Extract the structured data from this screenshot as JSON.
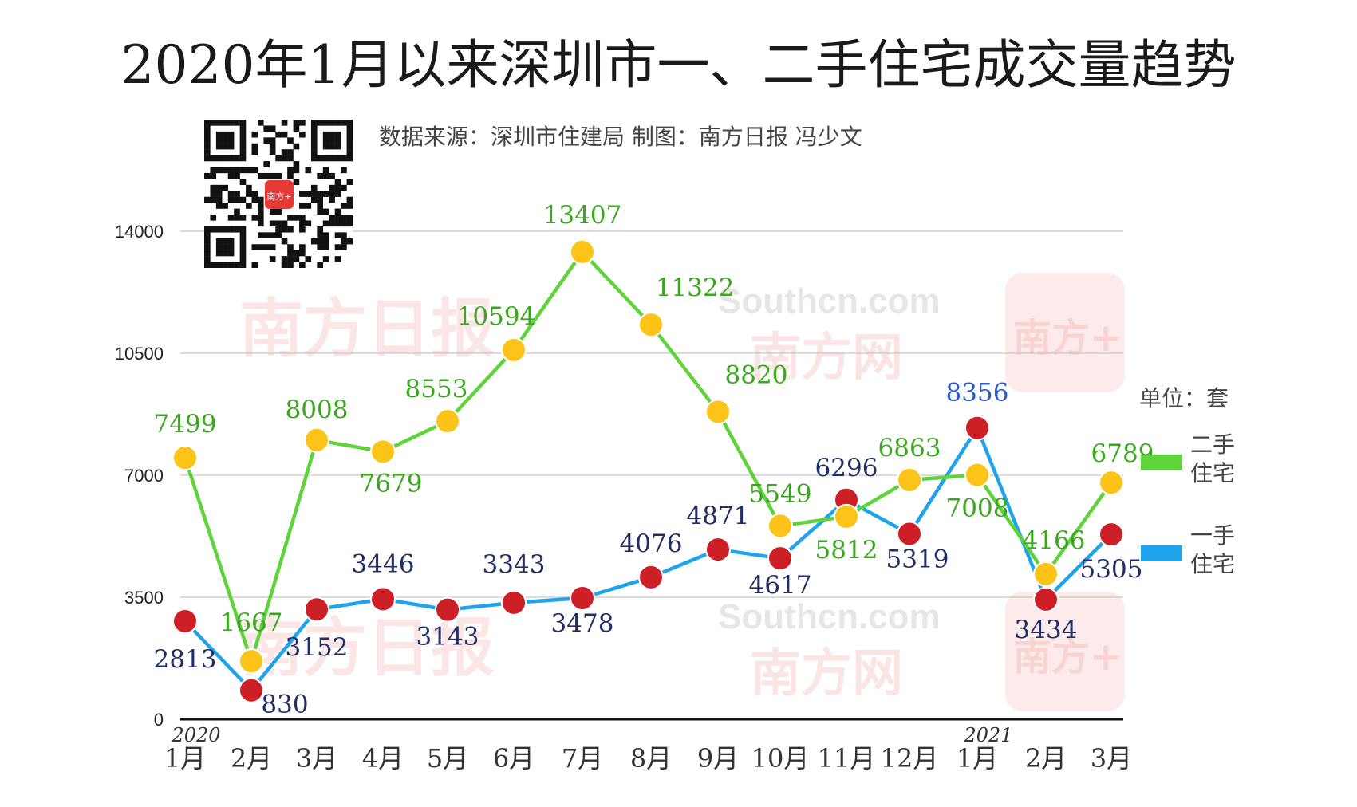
{
  "title": "2020年1月以来深圳市一、二手住宅成交量趋势",
  "source": "数据来源：深圳市住建局 制图：南方日报 冯少文",
  "unit": "单位：套",
  "qr_badge": "南方+",
  "watermarks": {
    "newspaper": "南方日报",
    "site": "Southcn.com",
    "site_cn": "南方网",
    "app": "南方+"
  },
  "colors": {
    "second_line": "#5ed43a",
    "second_marker": "#fcc419",
    "first_line": "#1fa4ec",
    "first_marker": "#cc1f26",
    "second_label": "#3aa81e",
    "first_label": "#222f66"
  },
  "legend": [
    {
      "name": "二手住宅",
      "line1": "二手",
      "line2": "住宅",
      "color": "#5ed43a"
    },
    {
      "name": "一手住宅",
      "line1": "一手",
      "line2": "住宅",
      "color": "#1fa4ec"
    }
  ],
  "chart_data": {
    "type": "line",
    "title": "2020年1月以来深圳市一、二手住宅成交量趋势",
    "xlabel": "",
    "ylabel": "",
    "ylim": [
      0,
      14000
    ],
    "yticks": [
      0,
      3500,
      7000,
      10500,
      14000
    ],
    "grid": true,
    "legend_position": "right",
    "categories": [
      "1月",
      "2月",
      "3月",
      "4月",
      "5月",
      "6月",
      "7月",
      "8月",
      "9月",
      "10月",
      "11月",
      "12月",
      "1月",
      "2月",
      "3月"
    ],
    "year_labels": [
      {
        "index": 0,
        "text": "2020"
      },
      {
        "index": 12,
        "text": "2021"
      }
    ],
    "series": [
      {
        "name": "二手住宅",
        "values": [
          7499,
          1667,
          8008,
          7679,
          8553,
          10594,
          13407,
          11322,
          8820,
          5549,
          5812,
          6863,
          7008,
          4166,
          6789
        ]
      },
      {
        "name": "一手住宅",
        "values": [
          2813,
          830,
          3152,
          3446,
          3143,
          3343,
          3478,
          4076,
          4871,
          4617,
          6296,
          5319,
          8356,
          3434,
          5305
        ]
      }
    ]
  }
}
